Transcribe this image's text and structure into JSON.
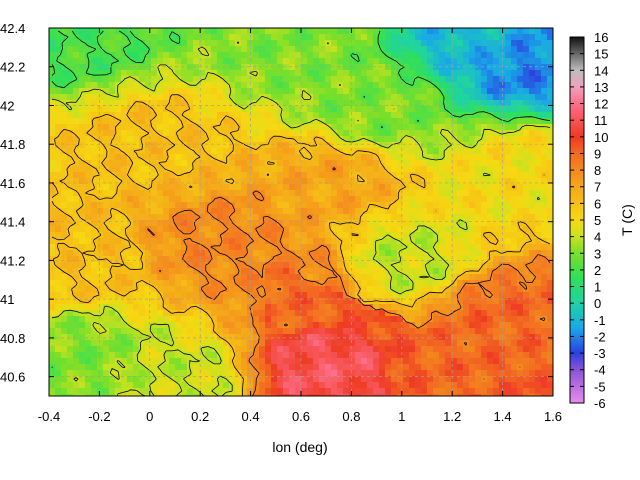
{
  "chart_data": {
    "type": "heatmap",
    "title": "",
    "xlabel": "lon (deg)",
    "ylabel": "",
    "colorbar_label": "T (C)",
    "xlim": [
      -0.4,
      1.6
    ],
    "ylim": [
      40.5,
      42.4
    ],
    "x_ticks": [
      "-0.4",
      "-0.2",
      "0",
      "0.2",
      "0.4",
      "0.6",
      "0.8",
      "1",
      "1.2",
      "1.4",
      "1.6"
    ],
    "y_ticks": [
      "40.6",
      "40.8",
      "41",
      "41.2",
      "41.4",
      "41.6",
      "41.8",
      "42",
      "42.2",
      "42.4"
    ],
    "colorbar_ticks": [
      "-6",
      "-5",
      "-4",
      "-3",
      "-2",
      "-1",
      "0",
      "1",
      "2",
      "3",
      "4",
      "5",
      "6",
      "7",
      "8",
      "9",
      "10",
      "11",
      "12",
      "13",
      "14",
      "15",
      "16"
    ],
    "colorbar_range": [
      -6,
      16
    ],
    "grid": true,
    "grid_style": "dashed",
    "contour_color": "#000000",
    "colormap": [
      {
        "v": -6,
        "color": "#e98cf0"
      },
      {
        "v": -4,
        "color": "#8a52d6"
      },
      {
        "v": -3,
        "color": "#2a40e0"
      },
      {
        "v": -1.5,
        "color": "#19a8e8"
      },
      {
        "v": 0,
        "color": "#1fd3a5"
      },
      {
        "v": 1.5,
        "color": "#2ee05a"
      },
      {
        "v": 3,
        "color": "#7adf2a"
      },
      {
        "v": 4,
        "color": "#c9e21f"
      },
      {
        "v": 5,
        "color": "#f6d912"
      },
      {
        "v": 7,
        "color": "#f5a71a"
      },
      {
        "v": 9,
        "color": "#f36a22"
      },
      {
        "v": 10,
        "color": "#ee3a22"
      },
      {
        "v": 12,
        "color": "#ff6f8a"
      },
      {
        "v": 13,
        "color": "#f0a0bd"
      },
      {
        "v": 14,
        "color": "#bdbdbd"
      },
      {
        "v": 16,
        "color": "#111111"
      }
    ],
    "field_description_points": [
      {
        "lon": -0.3,
        "lat": 42.35,
        "t": 2
      },
      {
        "lon": 0.6,
        "lat": 42.3,
        "t": 3
      },
      {
        "lon": 1.5,
        "lat": 42.2,
        "t": -2
      },
      {
        "lon": 1.3,
        "lat": 42.35,
        "t": -1
      },
      {
        "lon": 0.9,
        "lat": 42.0,
        "t": 3
      },
      {
        "lon": 0.0,
        "lat": 41.8,
        "t": 6
      },
      {
        "lon": 0.7,
        "lat": 41.6,
        "t": 7
      },
      {
        "lon": 0.3,
        "lat": 41.3,
        "t": 8
      },
      {
        "lon": 0.6,
        "lat": 41.1,
        "t": 8
      },
      {
        "lon": 1.0,
        "lat": 41.2,
        "t": 4
      },
      {
        "lon": 1.4,
        "lat": 40.9,
        "t": 9
      },
      {
        "lon": 1.2,
        "lat": 40.6,
        "t": 9
      },
      {
        "lon": 0.7,
        "lat": 40.65,
        "t": 11
      },
      {
        "lon": -0.3,
        "lat": 40.7,
        "t": 3
      },
      {
        "lon": 0.1,
        "lat": 40.6,
        "t": 4
      },
      {
        "lon": -0.3,
        "lat": 41.2,
        "t": 6
      },
      {
        "lon": 1.5,
        "lat": 41.7,
        "t": 5
      }
    ]
  }
}
